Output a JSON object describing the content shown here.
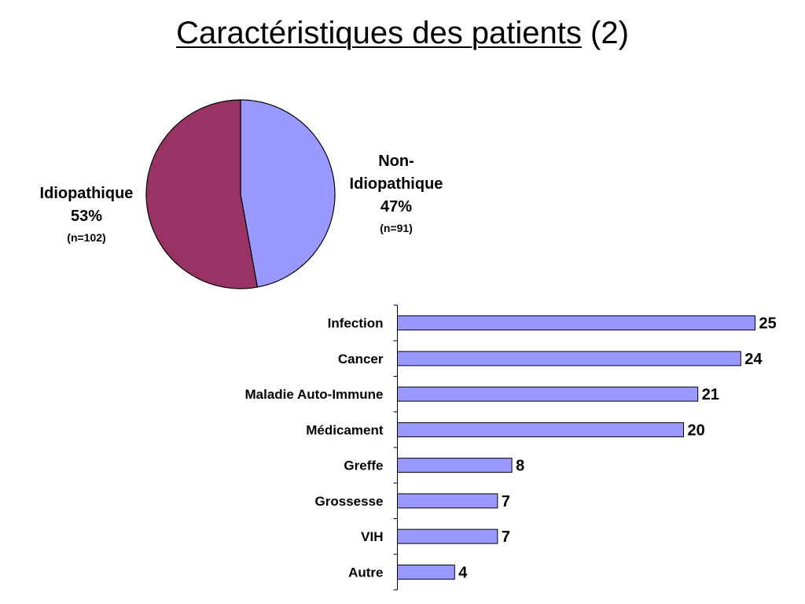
{
  "title": {
    "main": "Caractéristiques des patients",
    "suffix": "(2)"
  },
  "chart_data": [
    {
      "type": "pie",
      "slices": [
        {
          "label_lines": [
            "Non-",
            "Idiopathique"
          ],
          "percent_label": "47%",
          "n_label": "(n=91)",
          "value": 91,
          "color": "#9999ff"
        },
        {
          "label_lines": [
            "Idiopathique"
          ],
          "percent_label": "53%",
          "n_label": "(n=102)",
          "value": 102,
          "color": "#993366"
        }
      ]
    },
    {
      "type": "bar",
      "orientation": "horizontal",
      "categories": [
        "Infection",
        "Cancer",
        "Maladie Auto-Immune",
        "Médicament",
        "Greffe",
        "Grossesse",
        "VIH",
        "Autre"
      ],
      "values": [
        25,
        24,
        21,
        20,
        8,
        7,
        7,
        4
      ],
      "xlim": [
        0,
        25
      ],
      "color": "#9999ff",
      "data_labels": true,
      "grid": false
    }
  ]
}
